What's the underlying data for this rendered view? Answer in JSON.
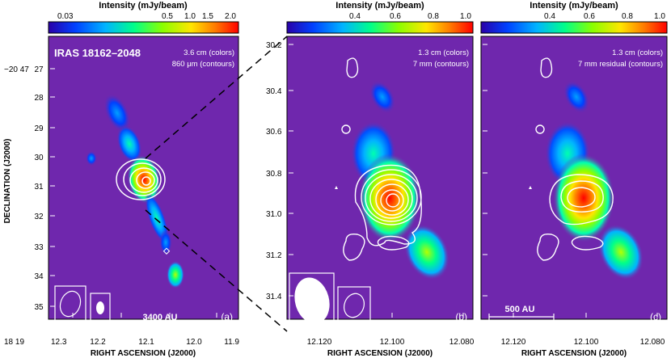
{
  "chart_data": [
    {
      "type": "heatmap",
      "panel": "(a)",
      "source": "IRAS 18162–2048",
      "colorbar_label": "Intensity (mJy/beam)",
      "colorbar_ticks": [
        "0.03",
        "0.5",
        "1.0",
        "1.5",
        "2.0"
      ],
      "colorbar_tick_values": [
        0.03,
        0.5,
        1.0,
        1.5,
        2.0
      ],
      "legend": [
        "3.6 cm (colors)",
        "860 μm (contours)"
      ],
      "xlabel": "RIGHT ASCENSION (J2000)",
      "ylabel": "DECLINATION (J2000)",
      "x_prefix": "18 19",
      "y_prefix": "−20 47",
      "x_ticks": [
        "12.3",
        "12.2",
        "12.1",
        "12.0",
        "11.9"
      ],
      "y_ticks": [
        "27",
        "28",
        "29",
        "30",
        "31",
        "32",
        "33",
        "34",
        "35"
      ],
      "scale_bar": "3400 AU",
      "peak": {
        "ra_s": 12.09,
        "dec_s": 30.8
      }
    },
    {
      "type": "heatmap",
      "panel": "(b)",
      "colorbar_label": "Intensity (mJy/beam)",
      "colorbar_ticks": [
        "0.4",
        "0.6",
        "0.8",
        "1.0"
      ],
      "colorbar_tick_values": [
        0.4,
        0.6,
        0.8,
        1.0
      ],
      "legend": [
        "1.3 cm (colors)",
        "7 mm (contours)"
      ],
      "xlabel": "RIGHT ASCENSION (J2000)",
      "x_ticks": [
        "12.120",
        "12.100",
        "12.080"
      ],
      "y_ticks": [
        "30.2",
        "30.4",
        "30.6",
        "30.8",
        "31.0",
        "31.2",
        "31.4"
      ],
      "peak": {
        "ra_s": 12.096,
        "dec_s": 30.93
      }
    },
    {
      "type": "heatmap",
      "panel": "(c)",
      "colorbar_label": "Intensity (mJy/beam)",
      "colorbar_ticks": [
        "0.4",
        "0.6",
        "0.8",
        "1.0"
      ],
      "colorbar_tick_values": [
        0.4,
        0.6,
        0.8,
        1.0
      ],
      "legend": [
        "1.3 cm (colors)",
        "7 mm residual (contours)"
      ],
      "xlabel": "RIGHT ASCENSION (J2000)",
      "x_ticks": [
        "12.120",
        "12.100",
        "12.080"
      ],
      "scale_bar": "500 AU",
      "peak": {
        "ra_s": 12.097,
        "dec_s": 30.9
      }
    }
  ],
  "colors": {
    "background": "#6f27ad",
    "contour": "#ffffff",
    "colormap": [
      "#2a00a8",
      "#0040ff",
      "#00b4ff",
      "#00ff8a",
      "#8aff00",
      "#ffe600",
      "#ff7800",
      "#ff0000"
    ]
  }
}
